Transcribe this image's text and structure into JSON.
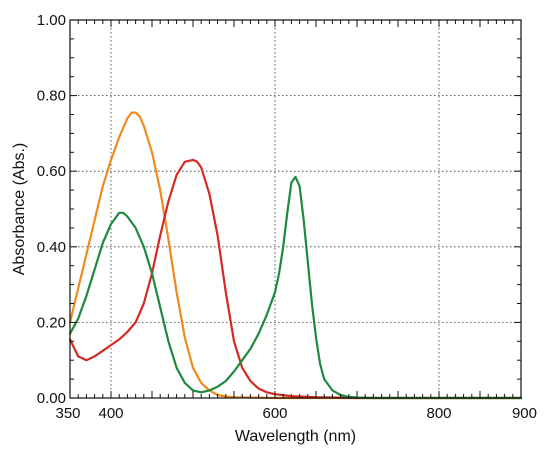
{
  "chart_data": {
    "type": "line",
    "title": "",
    "xlabel": "Wavelength (nm)",
    "ylabel": "Absorbance (Abs.)",
    "xlim": [
      350,
      900
    ],
    "ylim": [
      0,
      1.0
    ],
    "x_ticks": [
      350,
      400,
      600,
      800,
      900
    ],
    "x_tick_labels": [
      "350",
      "400",
      "600",
      "800",
      "900"
    ],
    "x_grid": [
      400,
      600,
      800
    ],
    "y_ticks": [
      0,
      0.2,
      0.4,
      0.6,
      0.8,
      1.0
    ],
    "y_tick_labels": [
      "0.00",
      "0.20",
      "0.40",
      "0.60",
      "0.80",
      "1.00"
    ],
    "grid": true,
    "legend": "none",
    "series": [
      {
        "color": "#ef8a1c",
        "x": [
          350,
          360,
          370,
          380,
          390,
          400,
          410,
          420,
          425,
          430,
          435,
          440,
          450,
          460,
          470,
          480,
          490,
          500,
          510,
          520,
          530,
          540,
          550,
          600,
          700,
          800,
          900
        ],
        "y": [
          0.2,
          0.29,
          0.38,
          0.47,
          0.56,
          0.63,
          0.69,
          0.74,
          0.755,
          0.755,
          0.745,
          0.72,
          0.65,
          0.55,
          0.42,
          0.28,
          0.16,
          0.08,
          0.04,
          0.02,
          0.008,
          0.004,
          0.002,
          0.0,
          0.0,
          0.0,
          0.0
        ]
      },
      {
        "color": "#d42a25",
        "x": [
          350,
          360,
          370,
          380,
          390,
          400,
          410,
          420,
          430,
          440,
          450,
          460,
          470,
          480,
          490,
          500,
          505,
          510,
          520,
          530,
          540,
          550,
          560,
          570,
          580,
          590,
          600,
          620,
          650,
          700,
          800,
          900
        ],
        "y": [
          0.155,
          0.11,
          0.1,
          0.11,
          0.125,
          0.14,
          0.155,
          0.175,
          0.2,
          0.25,
          0.33,
          0.43,
          0.52,
          0.59,
          0.625,
          0.63,
          0.625,
          0.61,
          0.54,
          0.43,
          0.28,
          0.15,
          0.08,
          0.045,
          0.025,
          0.015,
          0.01,
          0.005,
          0.002,
          0.0,
          0.0,
          0.0
        ]
      },
      {
        "color": "#1e8a3e",
        "x": [
          350,
          360,
          370,
          380,
          390,
          400,
          410,
          415,
          420,
          430,
          440,
          450,
          460,
          470,
          480,
          490,
          500,
          510,
          520,
          530,
          540,
          550,
          560,
          570,
          580,
          590,
          600,
          605,
          610,
          615,
          620,
          625,
          630,
          635,
          640,
          645,
          650,
          655,
          660,
          670,
          680,
          690,
          700,
          720,
          750,
          800,
          900
        ],
        "y": [
          0.17,
          0.21,
          0.27,
          0.34,
          0.41,
          0.46,
          0.49,
          0.49,
          0.48,
          0.45,
          0.4,
          0.33,
          0.24,
          0.15,
          0.08,
          0.04,
          0.02,
          0.015,
          0.02,
          0.03,
          0.045,
          0.07,
          0.1,
          0.13,
          0.17,
          0.22,
          0.28,
          0.33,
          0.4,
          0.49,
          0.57,
          0.585,
          0.56,
          0.47,
          0.36,
          0.25,
          0.16,
          0.09,
          0.05,
          0.02,
          0.008,
          0.003,
          0.001,
          0.0,
          0.0,
          0.0,
          0.0
        ]
      }
    ]
  }
}
